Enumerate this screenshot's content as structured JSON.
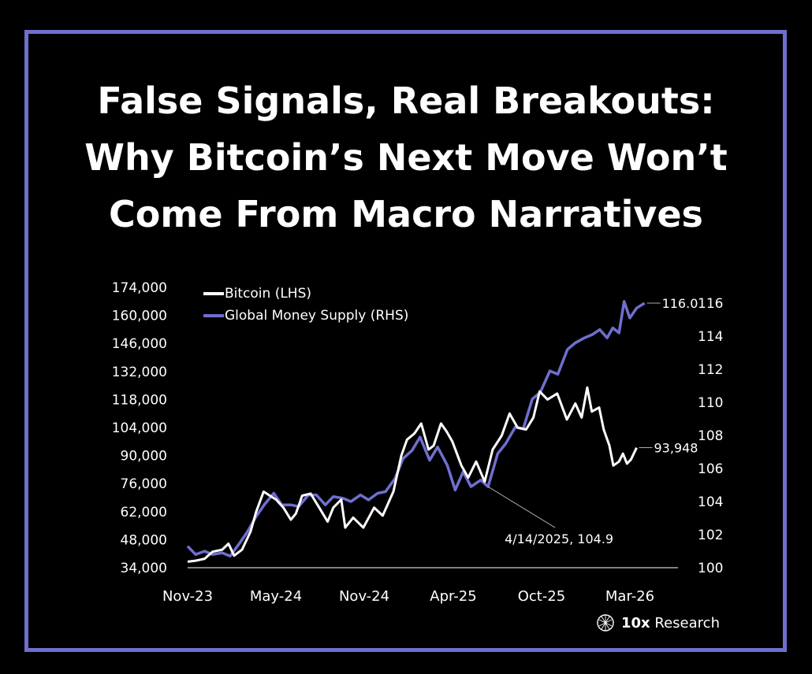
{
  "title_lines": [
    "False Signals, Real Breakouts:",
    "Why Bitcoin’s Next Move Won’t",
    "Come From Macro Narratives"
  ],
  "brand": {
    "mark": "10x",
    "name": "Research"
  },
  "colors": {
    "bitcoin": "#ffffff",
    "money_supply": "#6f6fd0",
    "frame": "#6f6fd0",
    "background": "#000000"
  },
  "chart_data": {
    "type": "line",
    "xlabel": "",
    "ylabel_left": "",
    "ylabel_right": "",
    "x_ticks": [
      "Nov-23",
      "May-24",
      "Nov-24",
      "Apr-25",
      "Oct-25",
      "Mar-26"
    ],
    "y_left": {
      "min": 34000,
      "max": 174000,
      "ticks": [
        174000,
        160000,
        146000,
        132000,
        118000,
        104000,
        90000,
        76000,
        62000,
        48000,
        34000
      ],
      "tick_labels": [
        "174,000",
        "160,000",
        "146,000",
        "132,000",
        "118,000",
        "104,000",
        "90,000",
        "76,000",
        "62,000",
        "48,000",
        "34,000"
      ]
    },
    "y_right": {
      "min": 100,
      "max": 116,
      "ticks": [
        116,
        114,
        112,
        110,
        108,
        106,
        104,
        102,
        100
      ],
      "tick_labels": [
        "116",
        "114",
        "112",
        "110",
        "108",
        "106",
        "104",
        "102",
        "100"
      ]
    },
    "legend_position": "top-left",
    "series": [
      {
        "name": "Bitcoin (LHS)",
        "axis": "left",
        "points": [
          [
            "2023-11-01",
            37000
          ],
          [
            "2023-11-15",
            37500
          ],
          [
            "2023-12-01",
            38500
          ],
          [
            "2023-12-15",
            42000
          ],
          [
            "2024-01-01",
            43000
          ],
          [
            "2024-01-12",
            46000
          ],
          [
            "2024-01-22",
            40000
          ],
          [
            "2024-02-05",
            43000
          ],
          [
            "2024-02-20",
            52000
          ],
          [
            "2024-03-01",
            62000
          ],
          [
            "2024-03-14",
            72000
          ],
          [
            "2024-03-25",
            70000
          ],
          [
            "2024-04-05",
            68000
          ],
          [
            "2024-04-18",
            64000
          ],
          [
            "2024-05-01",
            58000
          ],
          [
            "2024-05-10",
            61000
          ],
          [
            "2024-05-21",
            70000
          ],
          [
            "2024-06-05",
            71000
          ],
          [
            "2024-06-18",
            65000
          ],
          [
            "2024-07-05",
            57000
          ],
          [
            "2024-07-15",
            64000
          ],
          [
            "2024-07-29",
            68000
          ],
          [
            "2024-08-05",
            54000
          ],
          [
            "2024-08-19",
            59000
          ],
          [
            "2024-09-06",
            54000
          ],
          [
            "2024-09-25",
            64000
          ],
          [
            "2024-10-10",
            60000
          ],
          [
            "2024-10-29",
            72000
          ],
          [
            "2024-11-12",
            90000
          ],
          [
            "2024-11-22",
            98000
          ],
          [
            "2024-12-05",
            101000
          ],
          [
            "2024-12-17",
            106000
          ],
          [
            "2024-12-30",
            93000
          ],
          [
            "2025-01-08",
            95000
          ],
          [
            "2025-01-21",
            106000
          ],
          [
            "2025-01-31",
            102000
          ],
          [
            "2025-02-10",
            97000
          ],
          [
            "2025-02-26",
            85000
          ],
          [
            "2025-03-10",
            79000
          ],
          [
            "2025-03-24",
            87000
          ],
          [
            "2025-04-08",
            77000
          ],
          [
            "2025-04-22",
            93000
          ],
          [
            "2025-05-08",
            100000
          ],
          [
            "2025-05-22",
            111000
          ],
          [
            "2025-06-05",
            104000
          ],
          [
            "2025-06-20",
            103000
          ],
          [
            "2025-07-03",
            109000
          ],
          [
            "2025-07-14",
            122000
          ],
          [
            "2025-07-28",
            118000
          ],
          [
            "2025-08-14",
            121000
          ],
          [
            "2025-08-31",
            108000
          ],
          [
            "2025-09-15",
            116000
          ],
          [
            "2025-09-26",
            109000
          ],
          [
            "2025-10-06",
            124000
          ],
          [
            "2025-10-14",
            112000
          ],
          [
            "2025-10-27",
            114000
          ],
          [
            "2025-11-04",
            103000
          ],
          [
            "2025-11-14",
            95000
          ],
          [
            "2025-11-21",
            85000
          ],
          [
            "2025-12-01",
            87000
          ],
          [
            "2025-12-08",
            91000
          ],
          [
            "2025-12-15",
            86000
          ],
          [
            "2025-12-22",
            88000
          ],
          [
            "2026-01-01",
            93948
          ]
        ],
        "end_label": "93,948"
      },
      {
        "name": "Global Money Supply (RHS)",
        "axis": "right",
        "points": [
          [
            "2023-11-01",
            101.3
          ],
          [
            "2023-11-15",
            100.8
          ],
          [
            "2023-12-01",
            101.0
          ],
          [
            "2023-12-15",
            100.8
          ],
          [
            "2024-01-01",
            100.9
          ],
          [
            "2024-01-15",
            100.7
          ],
          [
            "2024-02-01",
            101.5
          ],
          [
            "2024-02-15",
            102.2
          ],
          [
            "2024-03-01",
            103.1
          ],
          [
            "2024-03-15",
            103.8
          ],
          [
            "2024-04-01",
            104.5
          ],
          [
            "2024-04-15",
            103.8
          ],
          [
            "2024-05-01",
            103.8
          ],
          [
            "2024-05-15",
            103.7
          ],
          [
            "2024-06-01",
            104.4
          ],
          [
            "2024-06-15",
            104.4
          ],
          [
            "2024-07-01",
            103.8
          ],
          [
            "2024-07-15",
            104.3
          ],
          [
            "2024-08-01",
            104.2
          ],
          [
            "2024-08-15",
            104.0
          ],
          [
            "2024-09-01",
            104.4
          ],
          [
            "2024-09-15",
            104.1
          ],
          [
            "2024-10-01",
            104.5
          ],
          [
            "2024-10-15",
            104.6
          ],
          [
            "2024-11-01",
            105.4
          ],
          [
            "2024-11-15",
            106.6
          ],
          [
            "2024-12-01",
            107.1
          ],
          [
            "2024-12-15",
            107.9
          ],
          [
            "2025-01-01",
            106.5
          ],
          [
            "2025-01-15",
            107.3
          ],
          [
            "2025-02-01",
            106.2
          ],
          [
            "2025-02-15",
            104.7
          ],
          [
            "2025-03-01",
            105.8
          ],
          [
            "2025-03-15",
            104.9
          ],
          [
            "2025-04-01",
            105.3
          ],
          [
            "2025-04-14",
            104.9
          ],
          [
            "2025-05-01",
            106.9
          ],
          [
            "2025-05-15",
            107.5
          ],
          [
            "2025-06-01",
            108.5
          ],
          [
            "2025-06-15",
            108.4
          ],
          [
            "2025-07-01",
            110.2
          ],
          [
            "2025-07-15",
            110.6
          ],
          [
            "2025-08-01",
            111.9
          ],
          [
            "2025-08-15",
            111.7
          ],
          [
            "2025-09-01",
            113.2
          ],
          [
            "2025-09-15",
            113.6
          ],
          [
            "2025-10-01",
            113.9
          ],
          [
            "2025-10-15",
            114.1
          ],
          [
            "2025-10-28",
            114.4
          ],
          [
            "2025-11-10",
            113.9
          ],
          [
            "2025-11-20",
            114.5
          ],
          [
            "2025-12-01",
            114.2
          ],
          [
            "2025-12-10",
            116.1
          ],
          [
            "2025-12-20",
            115.1
          ],
          [
            "2026-01-01",
            115.7
          ],
          [
            "2026-01-15",
            116.0
          ]
        ],
        "end_label": "116.0"
      }
    ],
    "annotations": [
      {
        "series": "Global Money Supply (RHS)",
        "date": "2025-04-14",
        "value": 104.9,
        "text": "4/14/2025, 104.9"
      }
    ]
  }
}
